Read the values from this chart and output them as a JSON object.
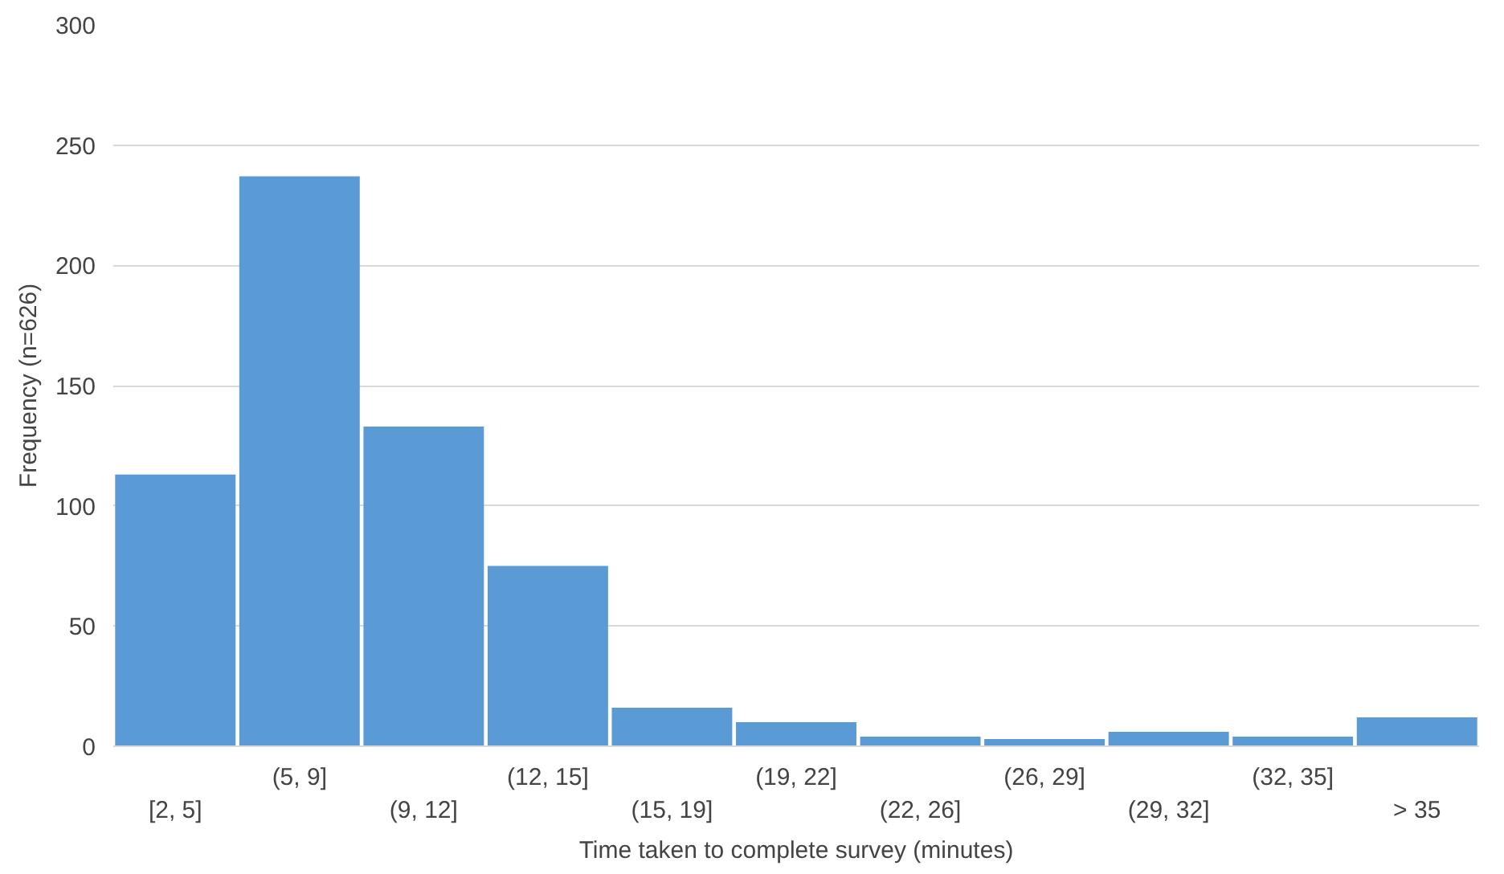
{
  "chart_data": {
    "type": "bar",
    "xlabel": "Time taken to complete survey (minutes)",
    "ylabel": "Frequency (n=626)",
    "categories": [
      "[2, 5]",
      "(5, 9]",
      "(9, 12]",
      "(12, 15]",
      "(15, 19]",
      "(19, 22]",
      "(22, 26]",
      "(26, 29]",
      "(29, 32]",
      "(32, 35]",
      "> 35"
    ],
    "values": [
      113,
      237,
      133,
      75,
      16,
      10,
      4,
      3,
      6,
      4,
      12
    ],
    "color": "#5b9bd5",
    "ylim": [
      0,
      300
    ],
    "yticks": [
      0,
      50,
      100,
      150,
      200,
      250,
      300
    ],
    "grid": "y"
  }
}
